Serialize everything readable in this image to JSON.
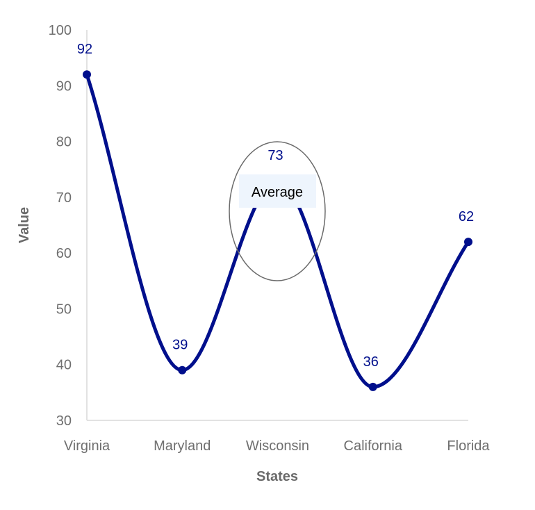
{
  "chart_data": {
    "type": "line",
    "categories": [
      "Virginia",
      "Maryland",
      "Wisconsin",
      "California",
      "Florida"
    ],
    "series": [
      {
        "values": [
          92,
          39,
          73,
          36,
          62
        ]
      }
    ],
    "data_labels": [
      "92",
      "39",
      "73",
      "36",
      "62"
    ],
    "xlabel": "States",
    "ylabel": "Value",
    "ylim": [
      30,
      100
    ],
    "yticks": [
      "30",
      "40",
      "50",
      "60",
      "70",
      "80",
      "90",
      "100"
    ],
    "smooth": true,
    "grid": false,
    "annotation": {
      "text": "Average",
      "category": "Wisconsin"
    },
    "colors": {
      "line": "#000f8c",
      "label": "#000f8c",
      "axis": "#d9d9d9",
      "annotation_ellipse": "#6b6b6b",
      "annotation_bg": "#eef5fd"
    }
  }
}
